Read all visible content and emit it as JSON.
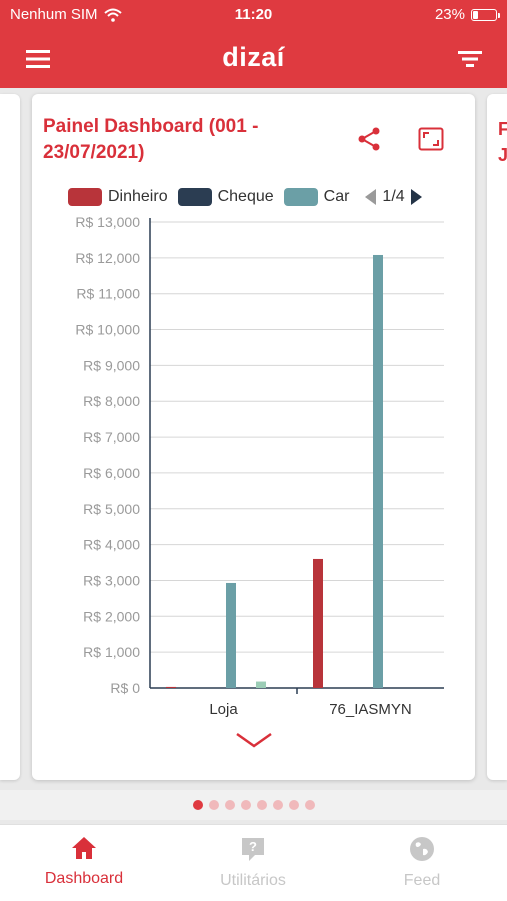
{
  "status_bar": {
    "carrier": "Nenhum SIM",
    "time": "11:20",
    "battery_percent": "23%",
    "battery_level": 0.23
  },
  "app_bar": {
    "brand": "dizaí",
    "menu_icon": "hamburger-menu-icon",
    "filter_icon": "filter-icon"
  },
  "card": {
    "title": "Painel Dashboard (001 - 23/07/2021)",
    "share_icon": "share-icon",
    "expand_icon": "fullscreen-icon",
    "legend": [
      {
        "name": "Dinheiro",
        "color": "#b8343a"
      },
      {
        "name": "Cheque",
        "color": "#2b3d52"
      },
      {
        "name": "Car",
        "color": "#6b9fa6"
      }
    ],
    "legend_page": "1/4",
    "expand_more_icon": "chevron-down-icon"
  },
  "next_card_peek": {
    "title": "F J"
  },
  "chart_data": {
    "type": "bar",
    "categories": [
      "Loja",
      "76_IASMYN"
    ],
    "series": [
      {
        "name": "Dinheiro",
        "color": "#b8343a",
        "values": [
          30,
          3600
        ]
      },
      {
        "name": "Cheque",
        "color": "#2b3d52",
        "values": [
          0,
          0
        ]
      },
      {
        "name": "Car",
        "color": "#6b9fa6",
        "values": [
          2930,
          12080
        ]
      },
      {
        "color": "#9ccdb6",
        "values": [
          180,
          0
        ]
      }
    ],
    "ylim": [
      0,
      13000
    ],
    "yticks": [
      "R$ 0",
      "R$ 1,000",
      "R$ 2,000",
      "R$ 3,000",
      "R$ 4,000",
      "R$ 5,000",
      "R$ 6,000",
      "R$ 7,000",
      "R$ 8,000",
      "R$ 9,000",
      "R$ 10,000",
      "R$ 11,000",
      "R$ 12,000",
      "R$ 13,000"
    ],
    "grid": true,
    "legend_position": "top"
  },
  "pagination": {
    "total": 8,
    "active_index": 0
  },
  "tab_bar": {
    "tabs": [
      {
        "label": "Dashboard",
        "icon": "home-icon",
        "active": true
      },
      {
        "label": "Utilitários",
        "icon": "help-icon",
        "active": false
      },
      {
        "label": "Feed",
        "icon": "globe-icon",
        "active": false
      }
    ]
  }
}
